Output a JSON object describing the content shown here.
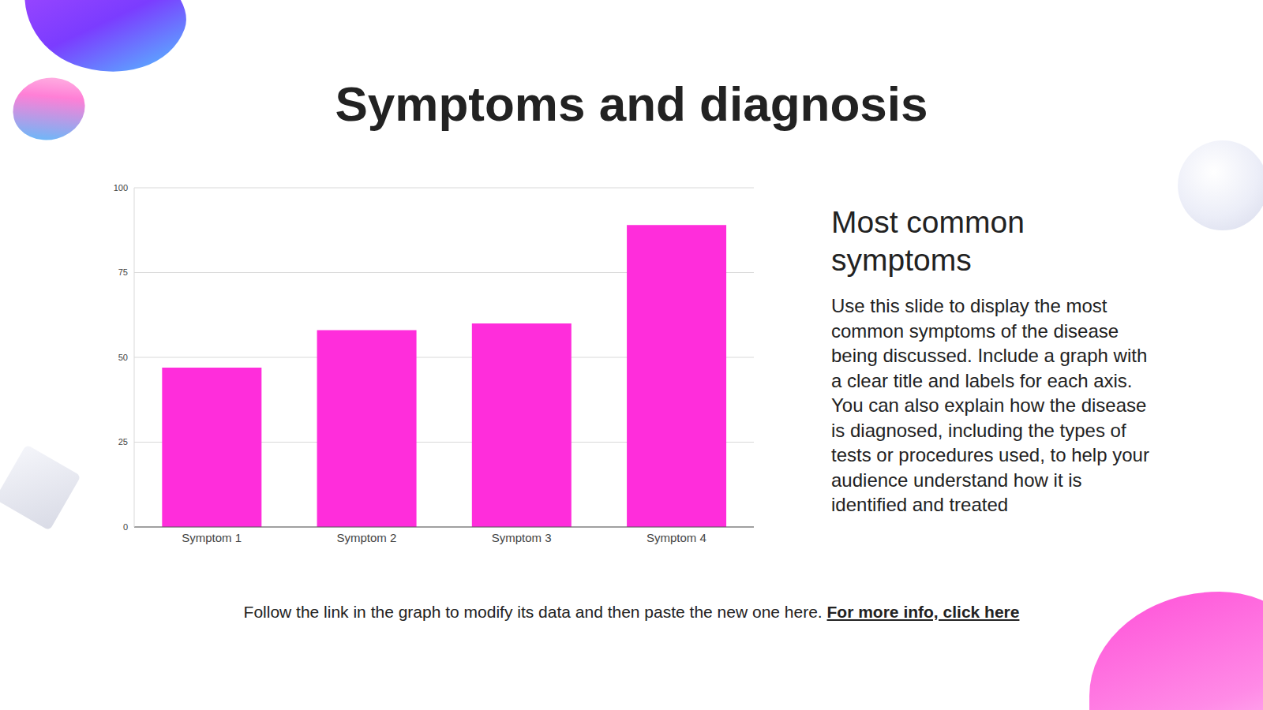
{
  "chart_data": {
    "type": "bar",
    "categories": [
      "Symptom 1",
      "Symptom 2",
      "Symptom 3",
      "Symptom 4"
    ],
    "values": [
      47,
      58,
      60,
      89
    ],
    "color": "#ff2ddb",
    "ylim": [
      0,
      100
    ],
    "yticks": [
      0,
      25,
      50,
      75,
      100
    ],
    "grid": true
  },
  "slide": {
    "title": "Symptoms and diagnosis",
    "side_heading": "Most common symptoms",
    "side_text": "Use this slide to display the most common symptoms of the disease being discussed. Include a graph with a clear title and labels for each axis. You can also explain how the disease is diagnosed, including the types of tests or procedures used, to help your audience understand how it is identified and treated",
    "footer": "Follow the link in the graph to modify its data and then paste the new one here.",
    "link": "For more info, click here"
  }
}
